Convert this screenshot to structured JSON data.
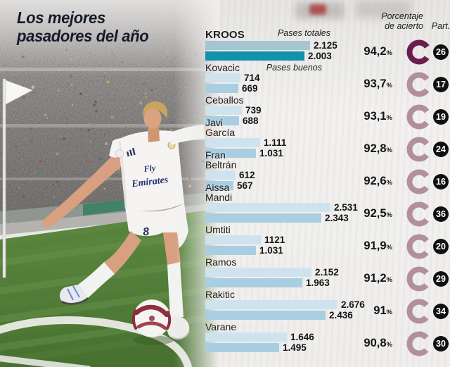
{
  "title": {
    "lines": [
      "Los mejores",
      "pasadores del año"
    ]
  },
  "header": {
    "accuracy_line1": "Porcentaje",
    "accuracy_line2": "de acierto",
    "part": "Part.",
    "series1": "Pases totales",
    "series2": "Pases buenos",
    "percent_sign": "%"
  },
  "colors": {
    "bar_totales": "#cfe3ee",
    "bar_buenos": "#a9cee1",
    "bar_totales_hl": "#a6c5d1",
    "bar_buenos_hl": "#1292ab",
    "ring": "#b18f9c",
    "ring_hl": "#6b1d4e",
    "badge_bg": "#101010",
    "badge_text": "#ffffff",
    "title_text": "#16192b"
  },
  "chart_data": {
    "type": "bar",
    "orientation": "horizontal",
    "series_labels": [
      "Pases totales",
      "Pases buenos"
    ],
    "value_axis_max": 2676,
    "players": [
      {
        "name": "KROOS",
        "totales": "2.125",
        "buenos": "2.003",
        "pct": "94,2",
        "part": "26",
        "highlight": true
      },
      {
        "name": "Kovacic",
        "totales": "714",
        "buenos": "669",
        "pct": "93,7",
        "part": "17",
        "highlight": false
      },
      {
        "name": "Ceballos",
        "totales": "739",
        "buenos": "688",
        "pct": "93,1",
        "part": "19",
        "highlight": false
      },
      {
        "name": "Javi García",
        "totales": "1.111",
        "buenos": "1.031",
        "pct": "92,8",
        "part": "24",
        "highlight": false
      },
      {
        "name": "Fran Beltrán",
        "totales": "612",
        "buenos": "567",
        "pct": "92,6",
        "part": "16",
        "highlight": false
      },
      {
        "name": "Aissa Mandi",
        "totales": "2.531",
        "buenos": "2.343",
        "pct": "92,5",
        "part": "36",
        "highlight": false
      },
      {
        "name": "Umtiti",
        "totales": "1121",
        "buenos": "1.031",
        "pct": "91,9",
        "part": "20",
        "highlight": false
      },
      {
        "name": "Ramos",
        "totales": "2.152",
        "buenos": "1.963",
        "pct": "91,2",
        "part": "29",
        "highlight": false
      },
      {
        "name": "Rakitic",
        "totales": "2.676",
        "buenos": "2.436",
        "pct": "91",
        "part": "34",
        "highlight": false
      },
      {
        "name": "Varane",
        "totales": "1.646",
        "buenos": "1.495",
        "pct": "90,8",
        "part": "30",
        "highlight": false
      }
    ]
  }
}
